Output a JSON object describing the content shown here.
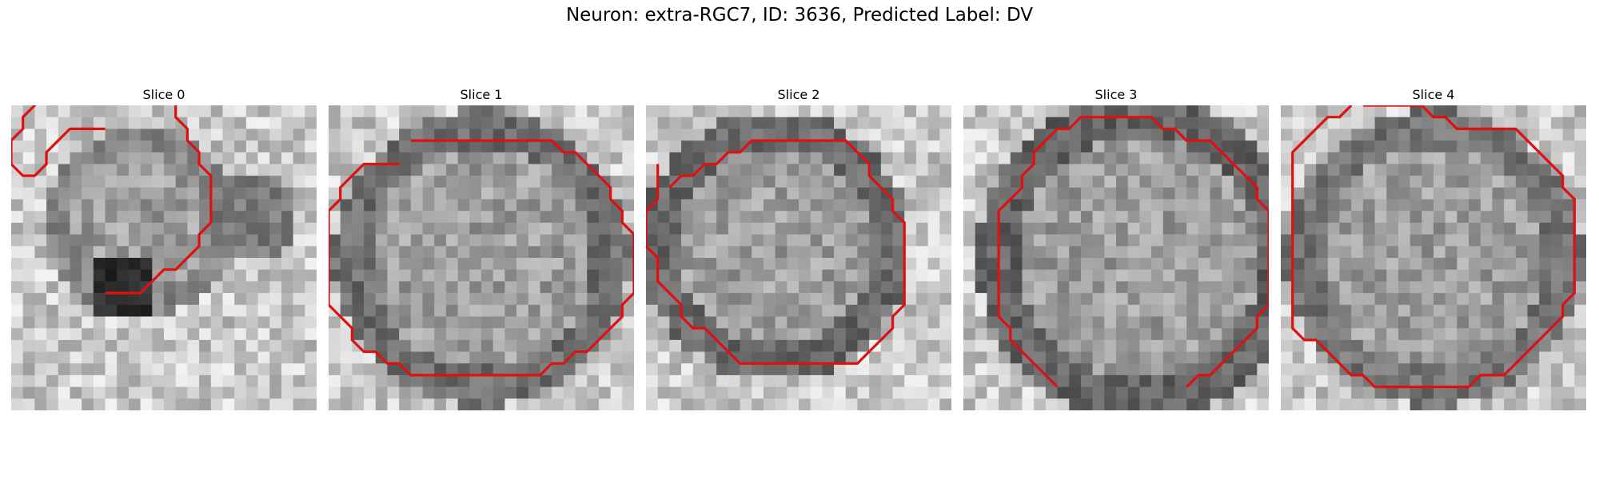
{
  "figure": {
    "title": "Neuron: extra-RGC7, ID: 3636, Predicted Label: DV",
    "contour_color": "#e01010"
  },
  "panels": [
    {
      "title": "Slice 0",
      "contour": [
        [
          8,
          2
        ],
        [
          5,
          2
        ],
        [
          4,
          3
        ],
        [
          3,
          4
        ],
        [
          3,
          5
        ],
        [
          2,
          6
        ],
        [
          1,
          6
        ],
        [
          0,
          5
        ],
        [
          0,
          4
        ],
        [
          0,
          3
        ],
        [
          1,
          2
        ],
        [
          1,
          1
        ],
        [
          2,
          0
        ],
        [
          3,
          -1
        ],
        [
          4,
          -2
        ],
        [
          5,
          -3
        ],
        [
          6,
          -3
        ],
        [
          7,
          -4
        ],
        [
          8,
          -4
        ],
        [
          9,
          -4
        ],
        [
          10,
          -4
        ],
        [
          11,
          -4
        ],
        [
          12,
          -3
        ],
        [
          12,
          -2
        ],
        [
          13,
          -1
        ],
        [
          14,
          0
        ],
        [
          14,
          1
        ],
        [
          15,
          2
        ],
        [
          15,
          3
        ],
        [
          16,
          4
        ],
        [
          16,
          5
        ],
        [
          17,
          6
        ],
        [
          17,
          7
        ],
        [
          17,
          8
        ],
        [
          17,
          9
        ],
        [
          17,
          10
        ],
        [
          16,
          11
        ],
        [
          16,
          12
        ],
        [
          15,
          13
        ],
        [
          14,
          14
        ],
        [
          13,
          14
        ],
        [
          12,
          15
        ],
        [
          11,
          16
        ],
        [
          10,
          16
        ],
        [
          9,
          16
        ],
        [
          8,
          16
        ]
      ]
    },
    {
      "title": "Slice 1",
      "contour": [
        [
          6,
          5
        ],
        [
          4,
          5
        ],
        [
          3,
          5
        ],
        [
          2,
          6
        ],
        [
          1,
          7
        ],
        [
          1,
          8
        ],
        [
          0,
          9
        ],
        [
          0,
          10
        ],
        [
          0,
          11
        ],
        [
          0,
          12
        ],
        [
          0,
          13
        ],
        [
          0,
          14
        ],
        [
          0,
          15
        ],
        [
          0,
          16
        ],
        [
          0,
          17
        ],
        [
          1,
          18
        ],
        [
          2,
          19
        ],
        [
          2,
          20
        ],
        [
          3,
          21
        ],
        [
          4,
          21
        ],
        [
          5,
          22
        ],
        [
          6,
          22
        ],
        [
          7,
          23
        ],
        [
          8,
          23
        ],
        [
          9,
          23
        ],
        [
          10,
          23
        ],
        [
          11,
          23
        ],
        [
          12,
          23
        ],
        [
          13,
          23
        ],
        [
          14,
          23
        ],
        [
          15,
          23
        ],
        [
          16,
          23
        ],
        [
          17,
          23
        ],
        [
          18,
          23
        ],
        [
          19,
          22
        ],
        [
          20,
          22
        ],
        [
          21,
          21
        ],
        [
          22,
          21
        ],
        [
          23,
          20
        ],
        [
          24,
          19
        ],
        [
          25,
          18
        ],
        [
          25,
          17
        ],
        [
          26,
          16
        ],
        [
          26,
          15
        ],
        [
          26,
          14
        ],
        [
          26,
          13
        ],
        [
          26,
          12
        ],
        [
          26,
          11
        ],
        [
          25,
          10
        ],
        [
          25,
          9
        ],
        [
          24,
          8
        ],
        [
          24,
          7
        ],
        [
          23,
          6
        ],
        [
          22,
          5
        ],
        [
          21,
          4
        ],
        [
          20,
          4
        ],
        [
          19,
          3
        ],
        [
          18,
          3
        ],
        [
          17,
          3
        ],
        [
          16,
          3
        ],
        [
          15,
          3
        ],
        [
          14,
          3
        ],
        [
          13,
          3
        ],
        [
          12,
          3
        ],
        [
          11,
          3
        ],
        [
          10,
          3
        ],
        [
          9,
          3
        ],
        [
          8,
          3
        ],
        [
          7,
          3
        ]
      ]
    },
    {
      "title": "Slice 2",
      "contour": [
        [
          1,
          5
        ],
        [
          1,
          6
        ],
        [
          1,
          7
        ],
        [
          1,
          8
        ],
        [
          0,
          9
        ],
        [
          0,
          10
        ],
        [
          0,
          11
        ],
        [
          0,
          12
        ],
        [
          1,
          13
        ],
        [
          1,
          14
        ],
        [
          1,
          15
        ],
        [
          2,
          16
        ],
        [
          3,
          17
        ],
        [
          3,
          18
        ],
        [
          4,
          19
        ],
        [
          5,
          19
        ],
        [
          6,
          20
        ],
        [
          7,
          21
        ],
        [
          8,
          22
        ],
        [
          9,
          22
        ],
        [
          10,
          22
        ],
        [
          11,
          22
        ],
        [
          12,
          22
        ],
        [
          13,
          22
        ],
        [
          14,
          22
        ],
        [
          15,
          22
        ],
        [
          16,
          22
        ],
        [
          17,
          22
        ],
        [
          18,
          22
        ],
        [
          19,
          21
        ],
        [
          20,
          20
        ],
        [
          21,
          19
        ],
        [
          21,
          18
        ],
        [
          22,
          17
        ],
        [
          22,
          16
        ],
        [
          22,
          15
        ],
        [
          22,
          14
        ],
        [
          22,
          13
        ],
        [
          22,
          12
        ],
        [
          22,
          11
        ],
        [
          22,
          10
        ],
        [
          21,
          9
        ],
        [
          21,
          8
        ],
        [
          20,
          7
        ],
        [
          19,
          6
        ],
        [
          19,
          5
        ],
        [
          18,
          4
        ],
        [
          17,
          3
        ],
        [
          16,
          3
        ],
        [
          15,
          3
        ],
        [
          14,
          3
        ],
        [
          13,
          3
        ],
        [
          12,
          3
        ],
        [
          11,
          3
        ],
        [
          10,
          3
        ],
        [
          9,
          3
        ],
        [
          8,
          4
        ],
        [
          7,
          4
        ],
        [
          6,
          5
        ],
        [
          5,
          5
        ],
        [
          4,
          6
        ],
        [
          3,
          6
        ],
        [
          2,
          7
        ]
      ]
    },
    {
      "title": "Slice 3",
      "contour": [
        [
          8,
          24
        ],
        [
          7,
          23
        ],
        [
          6,
          22
        ],
        [
          5,
          21
        ],
        [
          4,
          20
        ],
        [
          4,
          19
        ],
        [
          3,
          18
        ],
        [
          3,
          17
        ],
        [
          3,
          16
        ],
        [
          3,
          15
        ],
        [
          3,
          14
        ],
        [
          3,
          13
        ],
        [
          3,
          12
        ],
        [
          3,
          11
        ],
        [
          3,
          10
        ],
        [
          3,
          9
        ],
        [
          4,
          8
        ],
        [
          5,
          7
        ],
        [
          5,
          6
        ],
        [
          6,
          5
        ],
        [
          6,
          4
        ],
        [
          7,
          3
        ],
        [
          8,
          2
        ],
        [
          9,
          2
        ],
        [
          10,
          1
        ],
        [
          11,
          1
        ],
        [
          12,
          1
        ],
        [
          13,
          1
        ],
        [
          14,
          1
        ],
        [
          15,
          1
        ],
        [
          16,
          1
        ],
        [
          17,
          2
        ],
        [
          18,
          2
        ],
        [
          19,
          3
        ],
        [
          20,
          3
        ],
        [
          21,
          3
        ],
        [
          22,
          4
        ],
        [
          23,
          5
        ],
        [
          24,
          6
        ],
        [
          25,
          7
        ],
        [
          25,
          8
        ],
        [
          26,
          9
        ],
        [
          26,
          10
        ],
        [
          26,
          11
        ],
        [
          26,
          12
        ],
        [
          26,
          13
        ],
        [
          26,
          14
        ],
        [
          26,
          15
        ],
        [
          26,
          16
        ],
        [
          26,
          17
        ],
        [
          25,
          18
        ],
        [
          25,
          19
        ],
        [
          24,
          20
        ],
        [
          23,
          21
        ],
        [
          22,
          22
        ],
        [
          21,
          23
        ],
        [
          20,
          23
        ],
        [
          19,
          24
        ]
      ]
    },
    {
      "title": "Slice 4",
      "contour": [
        [
          6,
          0
        ],
        [
          5,
          1
        ],
        [
          4,
          1
        ],
        [
          3,
          2
        ],
        [
          2,
          3
        ],
        [
          1,
          4
        ],
        [
          1,
          5
        ],
        [
          1,
          6
        ],
        [
          1,
          7
        ],
        [
          1,
          8
        ],
        [
          1,
          9
        ],
        [
          1,
          10
        ],
        [
          1,
          11
        ],
        [
          1,
          12
        ],
        [
          1,
          13
        ],
        [
          1,
          14
        ],
        [
          1,
          15
        ],
        [
          1,
          16
        ],
        [
          1,
          17
        ],
        [
          1,
          18
        ],
        [
          1,
          19
        ],
        [
          2,
          20
        ],
        [
          3,
          20
        ],
        [
          4,
          21
        ],
        [
          5,
          22
        ],
        [
          6,
          23
        ],
        [
          7,
          23
        ],
        [
          8,
          24
        ],
        [
          9,
          24
        ],
        [
          10,
          24
        ],
        [
          11,
          24
        ],
        [
          12,
          24
        ],
        [
          13,
          24
        ],
        [
          14,
          24
        ],
        [
          15,
          24
        ],
        [
          16,
          24
        ],
        [
          17,
          23
        ],
        [
          18,
          23
        ],
        [
          19,
          23
        ],
        [
          20,
          22
        ],
        [
          21,
          21
        ],
        [
          22,
          20
        ],
        [
          23,
          19
        ],
        [
          24,
          18
        ],
        [
          24,
          17
        ],
        [
          25,
          16
        ],
        [
          25,
          15
        ],
        [
          25,
          14
        ],
        [
          25,
          13
        ],
        [
          25,
          12
        ],
        [
          25,
          11
        ],
        [
          25,
          10
        ],
        [
          25,
          9
        ],
        [
          25,
          8
        ],
        [
          24,
          7
        ],
        [
          24,
          6
        ],
        [
          23,
          5
        ],
        [
          22,
          4
        ],
        [
          21,
          3
        ],
        [
          20,
          2
        ],
        [
          19,
          2
        ],
        [
          18,
          2
        ],
        [
          17,
          2
        ],
        [
          16,
          2
        ],
        [
          15,
          2
        ],
        [
          14,
          1
        ],
        [
          13,
          1
        ],
        [
          12,
          0
        ],
        [
          11,
          0
        ],
        [
          10,
          0
        ],
        [
          9,
          0
        ],
        [
          8,
          0
        ],
        [
          7,
          0
        ]
      ]
    }
  ]
}
